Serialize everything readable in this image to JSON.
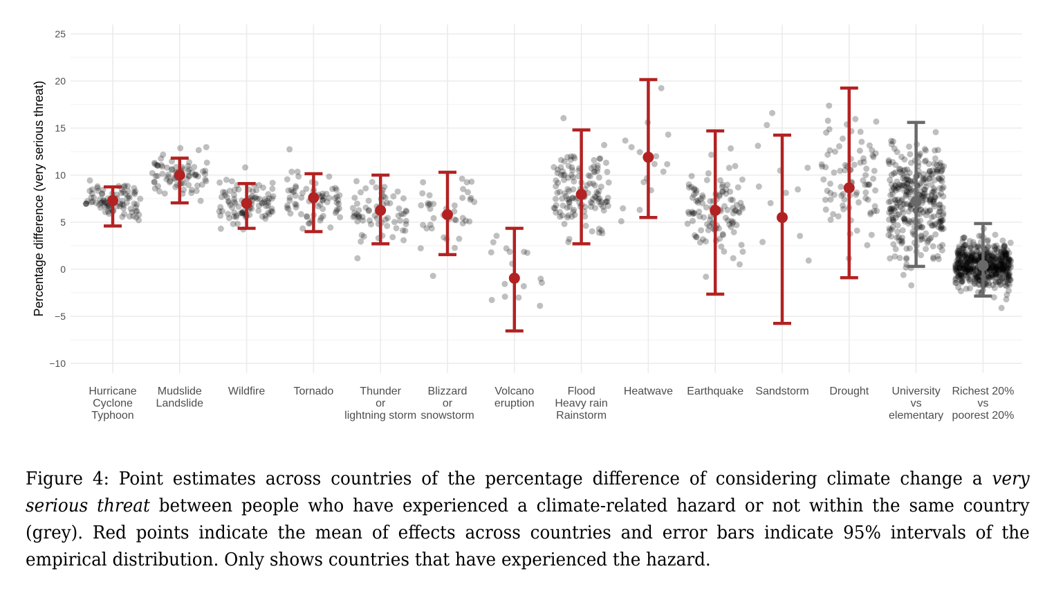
{
  "chart_data": {
    "type": "scatter",
    "subtype": "jittered strip plot with mean and 95% interval error bars",
    "title": "",
    "xlabel": "",
    "ylabel": "Percentage difference (very serious threat)",
    "ylim": [
      -11,
      26
    ],
    "yticks": [
      25,
      20,
      15,
      10,
      5,
      0,
      -5,
      -10
    ],
    "ytick_labels": [
      "25",
      "20",
      "15",
      "10",
      "5",
      "0",
      "−5",
      "−10"
    ],
    "grid": true,
    "colors": {
      "hazard_estimate": "#B22222",
      "reference_estimate": "#696969",
      "country_points": "#000000"
    },
    "categories": [
      {
        "lines": [
          "Hurricane",
          "Cyclone",
          "Typhoon"
        ],
        "mean": 7.3,
        "lower": 4.6,
        "upper": 8.75,
        "group": "hazard",
        "n_points": 90,
        "spread": 1.4
      },
      {
        "lines": [
          "Mudslide",
          "Landslide"
        ],
        "mean": 10.0,
        "lower": 7.05,
        "upper": 11.8,
        "group": "hazard",
        "n_points": 75,
        "spread": 1.5
      },
      {
        "lines": [
          "Wildfire"
        ],
        "mean": 7.0,
        "lower": 4.35,
        "upper": 9.1,
        "group": "hazard",
        "n_points": 90,
        "spread": 1.7
      },
      {
        "lines": [
          "Tornado"
        ],
        "mean": 7.6,
        "lower": 4.0,
        "upper": 10.15,
        "group": "hazard",
        "n_points": 70,
        "spread": 1.8
      },
      {
        "lines": [
          "Thunder",
          "or",
          "lightning storm"
        ],
        "mean": 6.25,
        "lower": 2.7,
        "upper": 10.0,
        "group": "hazard",
        "n_points": 70,
        "spread": 2.0
      },
      {
        "lines": [
          "Blizzard",
          "or",
          "snowstorm"
        ],
        "mean": 5.8,
        "lower": 1.55,
        "upper": 10.3,
        "group": "hazard",
        "n_points": 40,
        "spread": 2.6
      },
      {
        "lines": [
          "Volcano",
          "eruption"
        ],
        "mean": -0.95,
        "lower": -6.55,
        "upper": 4.35,
        "group": "hazard",
        "n_points": 16,
        "spread": 3.5
      },
      {
        "lines": [
          "Flood",
          "Heavy rain",
          "Rainstorm"
        ],
        "mean": 7.95,
        "lower": 2.7,
        "upper": 14.8,
        "group": "hazard",
        "n_points": 130,
        "spread": 3.3
      },
      {
        "lines": [
          "Heatwave"
        ],
        "mean": 11.9,
        "lower": 5.5,
        "upper": 20.15,
        "group": "hazard",
        "n_points": 16,
        "spread": 4.0
      },
      {
        "lines": [
          "Earthquake"
        ],
        "mean": 6.25,
        "lower": -2.65,
        "upper": 14.7,
        "group": "hazard",
        "n_points": 110,
        "spread": 3.3
      },
      {
        "lines": [
          "Sandstorm"
        ],
        "mean": 5.5,
        "lower": -5.75,
        "upper": 14.25,
        "group": "hazard",
        "n_points": 12,
        "spread": 5.5
      },
      {
        "lines": [
          "Drought"
        ],
        "mean": 8.65,
        "lower": -0.9,
        "upper": 19.25,
        "group": "hazard",
        "n_points": 85,
        "spread": 4.8
      },
      {
        "lines": [
          "University",
          "vs",
          "elementary"
        ],
        "mean": 7.2,
        "lower": 0.3,
        "upper": 15.6,
        "group": "reference",
        "n_points": 330,
        "spread": 4.2
      },
      {
        "lines": [
          "Richest 20%",
          "vs",
          "poorest 20%"
        ],
        "mean": 0.4,
        "lower": -2.85,
        "upper": 4.85,
        "group": "reference",
        "n_points": 500,
        "spread": 1.6
      }
    ]
  },
  "caption": {
    "label": "Figure 4:",
    "part1": "Point estimates across countries of the percentage difference of considering climate change a",
    "emphasis": "very serious threat",
    "part2": "between people who have experienced a climate-related hazard or not within the same country (grey). Red points indicate the mean of effects across countries and error bars indicate 95% intervals of the empirical distribution. Only shows countries that have experienced the hazard."
  }
}
